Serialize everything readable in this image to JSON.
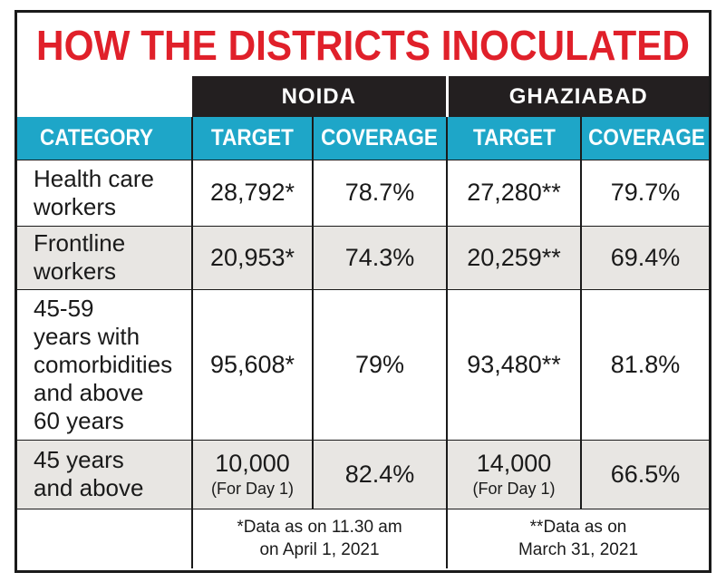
{
  "chart_data": {
    "type": "table",
    "title": "HOW THE DISTRICTS INOCULATED",
    "districts": [
      "NOIDA",
      "GHAZIABAD"
    ],
    "columns": [
      "CATEGORY",
      "TARGET",
      "COVERAGE",
      "TARGET",
      "COVERAGE"
    ],
    "rows": [
      {
        "category_lines": [
          "Health care",
          "workers"
        ],
        "noida_target": "28,792*",
        "noida_target_note": "",
        "noida_coverage": "78.7%",
        "ghaziabad_target": "27,280**",
        "ghaziabad_target_note": "",
        "ghaziabad_coverage": "79.7%"
      },
      {
        "category_lines": [
          "Frontline",
          "workers"
        ],
        "noida_target": "20,953*",
        "noida_target_note": "",
        "noida_coverage": "74.3%",
        "ghaziabad_target": "20,259**",
        "ghaziabad_target_note": "",
        "ghaziabad_coverage": "69.4%"
      },
      {
        "category_lines": [
          "45-59",
          "years with",
          "comorbidities",
          "and above",
          "60 years"
        ],
        "noida_target": "95,608*",
        "noida_target_note": "",
        "noida_coverage": "79%",
        "ghaziabad_target": "93,480**",
        "ghaziabad_target_note": "",
        "ghaziabad_coverage": "81.8%"
      },
      {
        "category_lines": [
          "45 years",
          "and above"
        ],
        "noida_target": "10,000",
        "noida_target_note": "(For Day 1)",
        "noida_coverage": "82.4%",
        "ghaziabad_target": "14,000",
        "ghaziabad_target_note": "(For Day 1)",
        "ghaziabad_coverage": "66.5%"
      }
    ],
    "notes": {
      "noida": [
        "*Data as on 11.30 am",
        "on April 1, 2021"
      ],
      "ghaziabad": [
        "**Data as on",
        "March 31, 2021"
      ]
    }
  },
  "colors": {
    "title": "#e0202a",
    "district_header_bg": "#231f20",
    "column_header_bg": "#1ea6c8",
    "shaded_row_bg": "#e8e6e3"
  }
}
